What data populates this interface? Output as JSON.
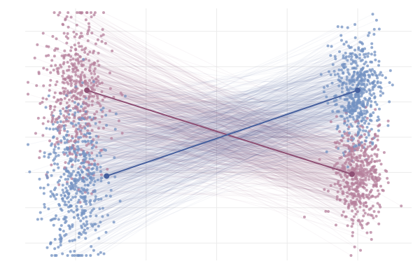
{
  "chart_data": {
    "type": "scatter",
    "title": "",
    "xlabel": "",
    "ylabel": "",
    "xlim": [
      0.83,
      2.2
    ],
    "ylim": [
      -3.5,
      3.9
    ],
    "x_grid": [
      1,
      1.25,
      1.5,
      1.75,
      2
    ],
    "y_grid": [
      -3,
      -2,
      -1,
      0,
      1,
      2,
      3
    ],
    "grid": true,
    "legend": "none",
    "x": [
      1,
      2
    ],
    "series": [
      {
        "color": "#8e4f74",
        "point_color": "#b5809c",
        "n": 500,
        "means": [
          1.33,
          -1.05
        ],
        "sd": [
          1.15,
          0.75
        ],
        "mean_x": [
          1.04,
          1.98
        ]
      },
      {
        "color": "#46609e",
        "point_color": "#7391c2",
        "n": 500,
        "means": [
          -1.1,
          1.33
        ],
        "sd": [
          1.15,
          0.75
        ],
        "mean_x": [
          1.11,
          2.0
        ]
      }
    ]
  }
}
